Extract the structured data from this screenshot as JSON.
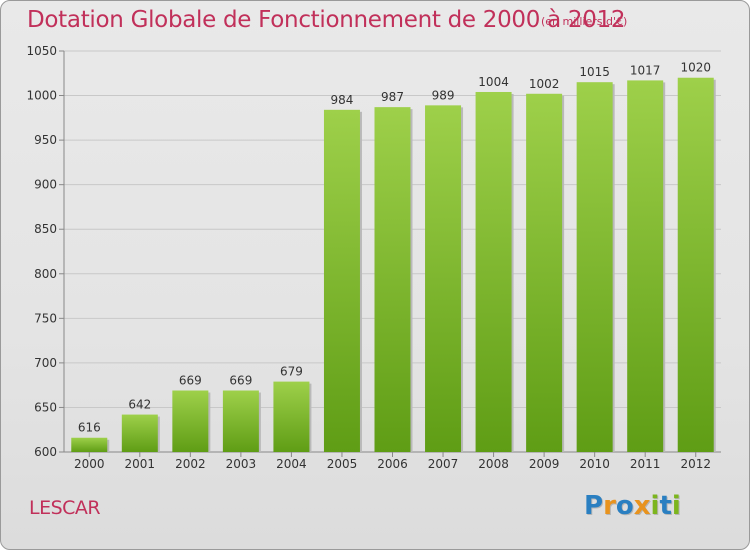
{
  "header": {
    "title": "Dotation Globale de Fonctionnement de 2000 à 2012",
    "subtitle": "(en milliers d'€)"
  },
  "footer": {
    "place": "LESCAR",
    "brand": "Proxiti",
    "brand_letters": [
      {
        "char": "P",
        "color": "#2a7fc1"
      },
      {
        "char": "r",
        "color": "#e8931e"
      },
      {
        "char": "o",
        "color": "#2a7fc1"
      },
      {
        "char": "x",
        "color": "#e8931e"
      },
      {
        "char": "i",
        "color": "#7cb51e"
      },
      {
        "char": "t",
        "color": "#2a7fc1"
      },
      {
        "char": "i",
        "color": "#7cb51e"
      }
    ]
  },
  "colors": {
    "bar_top": "#9ed04a",
    "bar_bottom": "#5f9d15",
    "accent": "#c1305a",
    "grid": "#c8c8c8"
  },
  "chart_data": {
    "type": "bar",
    "title": "Dotation Globale de Fonctionnement de 2000 à 2012",
    "subtitle": "(en milliers d'€)",
    "xlabel": "",
    "ylabel": "",
    "categories": [
      "2000",
      "2001",
      "2002",
      "2003",
      "2004",
      "2005",
      "2006",
      "2007",
      "2008",
      "2009",
      "2010",
      "2011",
      "2012"
    ],
    "values": [
      616,
      642,
      669,
      669,
      679,
      984,
      987,
      989,
      1004,
      1002,
      1015,
      1017,
      1020
    ],
    "ylim": [
      600,
      1050
    ],
    "yticks": [
      600,
      650,
      700,
      750,
      800,
      850,
      900,
      950,
      1000,
      1050
    ],
    "grid": true,
    "data_labels": true
  }
}
